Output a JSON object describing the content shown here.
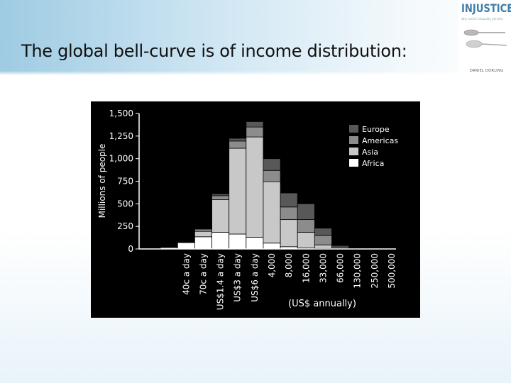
{
  "slide": {
    "title": "The global bell-curve is of income distribution:"
  },
  "logo": {
    "word": "INJUSTICE",
    "tagline": "why social inequality persists",
    "author": "DANIEL DORLING",
    "accent": "#3e7ea8"
  },
  "chart_data": {
    "type": "bar",
    "stacked": true,
    "title": "",
    "ylabel": "Millions of people",
    "xlabel": "(US$ annually)",
    "ylim": [
      0,
      1500
    ],
    "yticks": [
      0,
      250,
      500,
      750,
      1000,
      1250,
      1500
    ],
    "ytick_labels": [
      "0",
      "250",
      "500",
      "750",
      "1,000",
      "1,250",
      "1,500"
    ],
    "legend_position": "top-right",
    "grid": false,
    "tick_labels": [
      "40c a day",
      "70c a day",
      "US$1.4 a day",
      "US$3 a day",
      "US$6 a day",
      "4,000",
      "8,000",
      "16,000",
      "33,000",
      "66,000",
      "130,000",
      "250,000",
      "500,000"
    ],
    "categories": [
      "b1",
      "b2",
      "b3",
      "b4",
      "b5",
      "b6",
      "b7",
      "b8",
      "b9",
      "b10",
      "b11",
      "b12",
      "b13",
      "b14",
      "b15"
    ],
    "series": [
      {
        "name": "Africa",
        "color": "#ffffff",
        "values": [
          0,
          15,
          70,
          135,
          185,
          165,
          130,
          65,
          25,
          10,
          5,
          2,
          0,
          0,
          0
        ]
      },
      {
        "name": "Asia",
        "color": "#c8c8c8",
        "values": [
          0,
          0,
          5,
          60,
          360,
          950,
          1110,
          680,
          300,
          175,
          40,
          5,
          0,
          0,
          0
        ]
      },
      {
        "name": "Americas",
        "color": "#8c8c8c",
        "values": [
          0,
          0,
          0,
          25,
          45,
          80,
          110,
          125,
          140,
          140,
          105,
          15,
          2,
          0,
          0
        ]
      },
      {
        "name": "Europe",
        "color": "#585858",
        "values": [
          0,
          0,
          0,
          5,
          20,
          30,
          60,
          130,
          155,
          175,
          80,
          15,
          1,
          0,
          0
        ]
      }
    ]
  }
}
